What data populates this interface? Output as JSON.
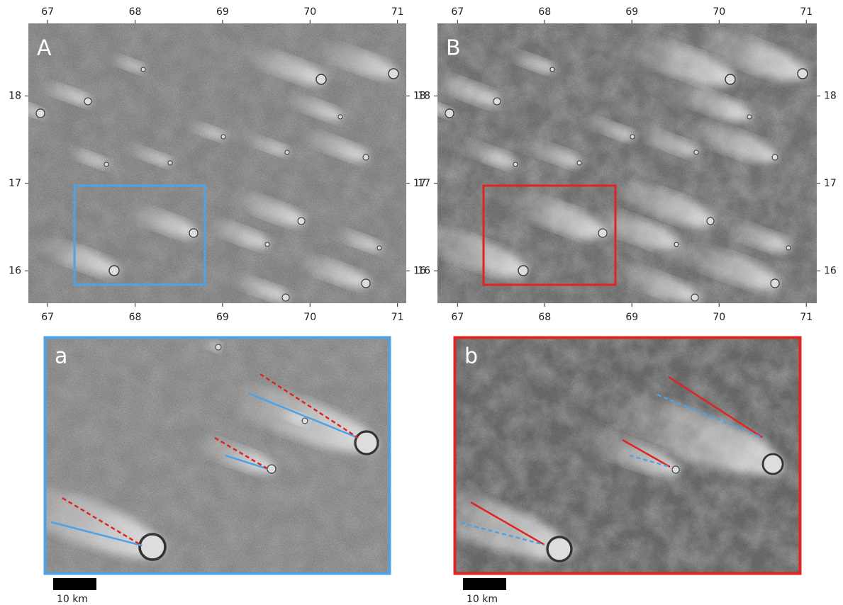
{
  "panels": [
    {
      "label": "A",
      "xlim": [
        66.78,
        71.1
      ],
      "ylim": [
        15.63,
        18.83
      ],
      "xticks": [
        67,
        68,
        69,
        70,
        71
      ],
      "yticks": [
        16,
        17,
        18
      ]
    },
    {
      "label": "B",
      "xlim": [
        66.77,
        71.12
      ],
      "ylim": [
        15.63,
        18.83
      ],
      "xticks": [
        67,
        68,
        69,
        70,
        71
      ],
      "yticks": [
        16,
        17,
        18
      ]
    }
  ],
  "insets": [
    {
      "label": "a",
      "scale_bar": "10 km"
    },
    {
      "label": "b",
      "scale_bar": "10 km"
    }
  ]
}
